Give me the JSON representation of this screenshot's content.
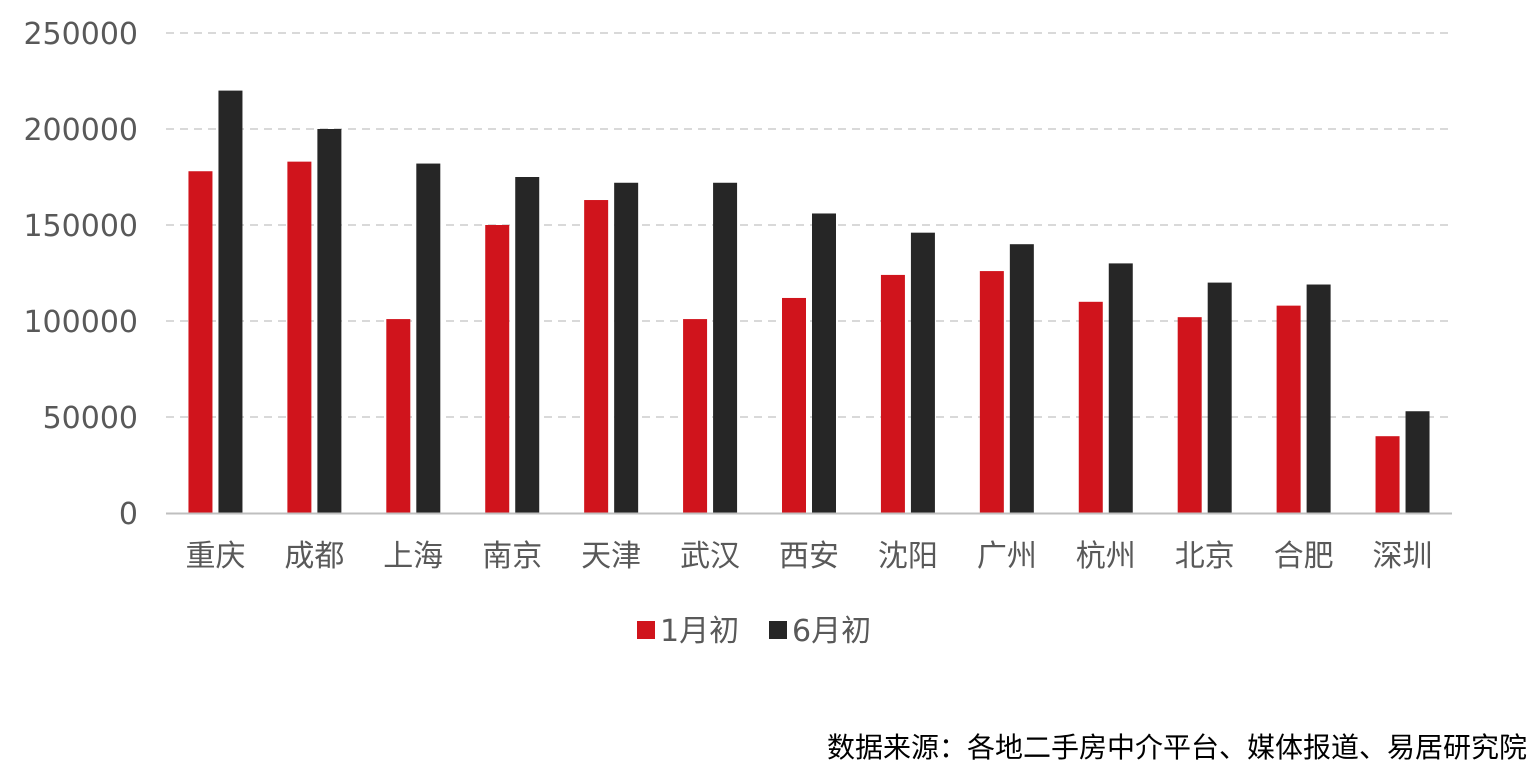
{
  "chart_data": {
    "type": "bar",
    "categories": [
      "重庆",
      "成都",
      "上海",
      "南京",
      "天津",
      "武汉",
      "西安",
      "沈阳",
      "广州",
      "杭州",
      "北京",
      "合肥",
      "深圳"
    ],
    "series": [
      {
        "name": "1月初",
        "color": "#d0141c",
        "values": [
          178000,
          183000,
          101000,
          150000,
          163000,
          101000,
          112000,
          124000,
          126000,
          110000,
          102000,
          108000,
          40000
        ]
      },
      {
        "name": "6月初",
        "color": "#262626",
        "values": [
          220000,
          200000,
          182000,
          175000,
          172000,
          172000,
          156000,
          146000,
          140000,
          130000,
          120000,
          119000,
          53000
        ]
      }
    ],
    "yticks": [
      "0",
      "50000",
      "100000",
      "150000",
      "200000",
      "250000"
    ],
    "ylim": [
      0,
      250000
    ],
    "grid": true,
    "legend_position": "bottom"
  },
  "footer": {
    "source": "数据来源：各地二手房中介平台、媒体报道、易居研究院"
  }
}
